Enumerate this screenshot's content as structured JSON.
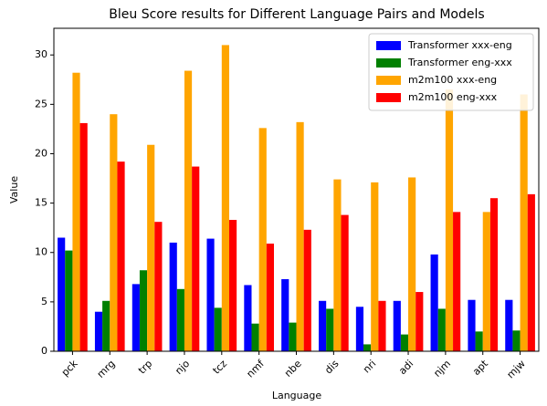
{
  "chart_data": {
    "type": "bar",
    "title": "Bleu Score results for Different Language Pairs and Models",
    "x_label": "Language",
    "y_label": "Value",
    "categories": [
      "pck",
      "mrg",
      "trp",
      "njo",
      "tcz",
      "nmf",
      "nbe",
      "dis",
      "nri",
      "adi",
      "njm",
      "apt",
      "mjw"
    ],
    "series": [
      {
        "name": "Transformer xxx-eng",
        "color": "#0000ff",
        "values": [
          11.5,
          4.0,
          6.8,
          11.0,
          11.4,
          6.7,
          7.3,
          5.1,
          4.5,
          5.1,
          9.8,
          5.2,
          5.2
        ]
      },
      {
        "name": "Transformer eng-xxx",
        "color": "#008000",
        "values": [
          10.2,
          5.1,
          8.2,
          6.3,
          4.4,
          2.8,
          2.9,
          4.3,
          0.7,
          1.7,
          4.3,
          2.0,
          2.1
        ]
      },
      {
        "name": "m2m100 xxx-eng",
        "color": "#ffa500",
        "values": [
          28.2,
          24.0,
          20.9,
          28.4,
          31.0,
          22.6,
          23.2,
          17.4,
          17.1,
          17.6,
          26.5,
          14.1,
          26.0
        ]
      },
      {
        "name": "m2m100 eng-xxx",
        "color": "#ff0000",
        "values": [
          23.1,
          19.2,
          13.1,
          18.7,
          13.3,
          10.9,
          12.3,
          13.8,
          5.1,
          6.0,
          14.1,
          15.5,
          15.9
        ]
      }
    ],
    "ylim": [
      0,
      32.7
    ],
    "yticks": [
      0,
      5,
      10,
      15,
      20,
      25,
      30
    ],
    "grid": false,
    "legend": "upper right"
  }
}
